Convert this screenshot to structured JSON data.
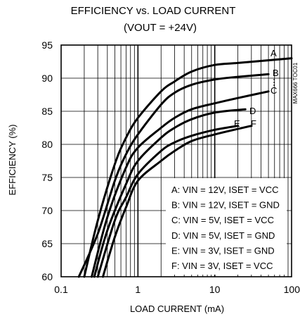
{
  "chart_data": {
    "type": "line",
    "title": "EFFICIENCY vs. LOAD CURRENT",
    "subtitle": "(VOUT = +24V)",
    "xlabel": "LOAD CURRENT (mA)",
    "ylabel": "EFFICIENCY (%)",
    "xscale": "log",
    "xlim": [
      0.1,
      100
    ],
    "ylim": [
      60,
      95
    ],
    "x_tick_labels": [
      "0.1",
      "1",
      "10",
      "100"
    ],
    "y_tick_labels": [
      "60",
      "65",
      "70",
      "75",
      "80",
      "85",
      "90",
      "95"
    ],
    "grid": true,
    "side_tag": "MAX666 TOC01",
    "legend": [
      "A: VIN = 12V, ISET = VCC",
      "B: VIN = 12V, ISET = GND",
      "C: VIN = 5V, ISET = VCC",
      "D: VIN = 5V, ISET = GND",
      "E: VIN = 3V, ISET = GND",
      "F: VIN = 3V, ISET = VCC"
    ],
    "series": [
      {
        "name": "A",
        "x": [
          0.2,
          0.3,
          0.5,
          0.7,
          1,
          2,
          3,
          5,
          10,
          20,
          50,
          100
        ],
        "y": [
          60,
          68.5,
          77,
          81,
          84,
          88,
          89.5,
          91,
          92,
          92.3,
          92.7,
          93
        ]
      },
      {
        "name": "B",
        "x": [
          0.17,
          0.3,
          0.5,
          0.7,
          1,
          2,
          3,
          5,
          10,
          20,
          50
        ],
        "y": [
          60,
          66.5,
          74.5,
          78.5,
          81.5,
          86,
          87.8,
          89,
          89.8,
          90.2,
          90.6
        ]
      },
      {
        "name": "C",
        "x": [
          0.25,
          0.4,
          0.7,
          1,
          2,
          3,
          5,
          10,
          20,
          50
        ],
        "y": [
          60,
          69,
          76.5,
          79.5,
          82.5,
          84,
          85.3,
          86.2,
          87,
          88
        ]
      },
      {
        "name": "D",
        "x": [
          0.27,
          0.4,
          0.7,
          1,
          2,
          3,
          5,
          10,
          25
        ],
        "y": [
          60,
          67,
          74,
          77.5,
          81,
          82.5,
          83.8,
          84.8,
          85.3
        ]
      },
      {
        "name": "E",
        "x": [
          0.3,
          0.5,
          0.7,
          1,
          2,
          3,
          5,
          10,
          20
        ],
        "y": [
          60,
          68.5,
          72,
          75.5,
          79,
          80.3,
          81.3,
          82.2,
          82.8
        ]
      },
      {
        "name": "F",
        "x": [
          0.35,
          0.5,
          0.7,
          1,
          2,
          3,
          5,
          10,
          30
        ],
        "y": [
          60,
          66,
          70.5,
          74.5,
          77.5,
          79,
          80.5,
          81.5,
          82.8
        ]
      }
    ]
  }
}
